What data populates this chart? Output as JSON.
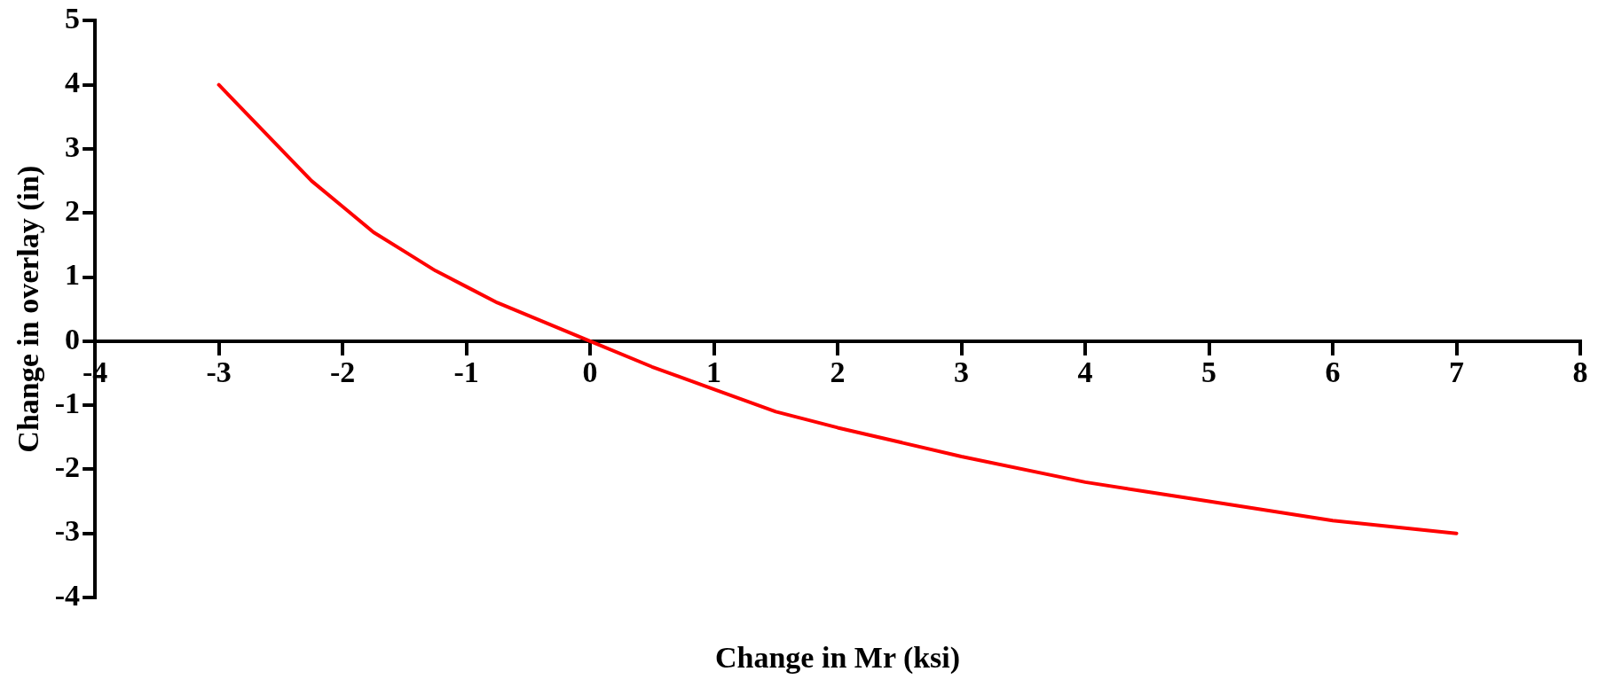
{
  "chart_data": {
    "type": "line",
    "xlabel": "Change in Mr (ksi)",
    "ylabel": "Change in overlay (in)",
    "series": [
      {
        "color": "#ff0000",
        "x": [
          -3,
          -2.75,
          -2.25,
          -2,
          -1.75,
          -1.5,
          -1.25,
          -1,
          -0.75,
          -0.5,
          0,
          0.5,
          1,
          1.5,
          2,
          3,
          4,
          4.5,
          5,
          6,
          6.5,
          7
        ],
        "values": [
          4,
          3.5,
          2.5,
          2.1,
          1.7,
          1.4,
          1.1,
          0.85,
          0.6,
          0.4,
          0,
          -0.4,
          -0.75,
          -1.1,
          -1.35,
          -1.8,
          -2.2,
          -2.35,
          -2.5,
          -2.8,
          -2.9,
          -3
        ]
      }
    ],
    "xlim": [
      -4,
      8
    ],
    "xticks": [
      -4,
      -3,
      -2,
      -1,
      0,
      1,
      2,
      3,
      4,
      5,
      6,
      7,
      8
    ],
    "ylim": [
      -4,
      5
    ],
    "yticks": [
      -4,
      -3,
      -2,
      -1,
      0,
      1,
      2,
      3,
      4,
      5
    ],
    "grid": false,
    "legend": false,
    "marker": "none",
    "line_style": "solid"
  }
}
